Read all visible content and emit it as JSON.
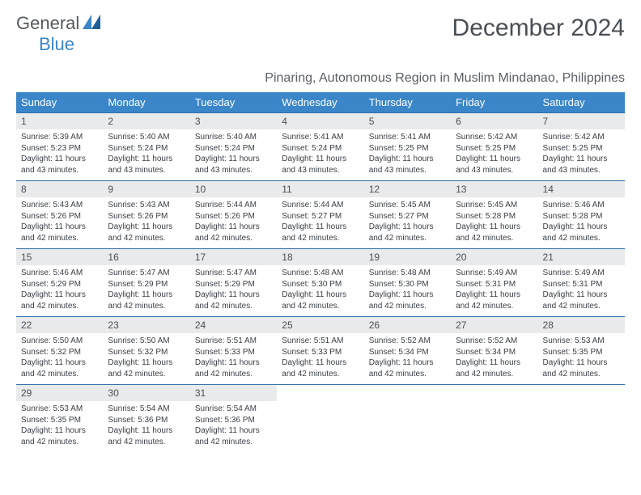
{
  "brand": {
    "part1": "General",
    "part2": "Blue"
  },
  "title": "December 2024",
  "location": "Pinaring, Autonomous Region in Muslim Mindanao, Philippines",
  "day_headers": [
    "Sunday",
    "Monday",
    "Tuesday",
    "Wednesday",
    "Thursday",
    "Friday",
    "Saturday"
  ],
  "colors": {
    "header_bg": "#3a86c8",
    "header_text": "#ffffff",
    "daynum_bg": "#e9eaeb",
    "text": "#3a3f45",
    "rule": "#2f6fa8"
  },
  "calendar_layout": {
    "type": "month-grid",
    "columns": 7,
    "rows": 5,
    "start_weekday": "Sunday",
    "first_day_column": 0
  },
  "days": [
    {
      "n": 1,
      "sunrise": "5:39 AM",
      "sunset": "5:23 PM",
      "daylight": "11 hours and 43 minutes."
    },
    {
      "n": 2,
      "sunrise": "5:40 AM",
      "sunset": "5:24 PM",
      "daylight": "11 hours and 43 minutes."
    },
    {
      "n": 3,
      "sunrise": "5:40 AM",
      "sunset": "5:24 PM",
      "daylight": "11 hours and 43 minutes."
    },
    {
      "n": 4,
      "sunrise": "5:41 AM",
      "sunset": "5:24 PM",
      "daylight": "11 hours and 43 minutes."
    },
    {
      "n": 5,
      "sunrise": "5:41 AM",
      "sunset": "5:25 PM",
      "daylight": "11 hours and 43 minutes."
    },
    {
      "n": 6,
      "sunrise": "5:42 AM",
      "sunset": "5:25 PM",
      "daylight": "11 hours and 43 minutes."
    },
    {
      "n": 7,
      "sunrise": "5:42 AM",
      "sunset": "5:25 PM",
      "daylight": "11 hours and 43 minutes."
    },
    {
      "n": 8,
      "sunrise": "5:43 AM",
      "sunset": "5:26 PM",
      "daylight": "11 hours and 42 minutes."
    },
    {
      "n": 9,
      "sunrise": "5:43 AM",
      "sunset": "5:26 PM",
      "daylight": "11 hours and 42 minutes."
    },
    {
      "n": 10,
      "sunrise": "5:44 AM",
      "sunset": "5:26 PM",
      "daylight": "11 hours and 42 minutes."
    },
    {
      "n": 11,
      "sunrise": "5:44 AM",
      "sunset": "5:27 PM",
      "daylight": "11 hours and 42 minutes."
    },
    {
      "n": 12,
      "sunrise": "5:45 AM",
      "sunset": "5:27 PM",
      "daylight": "11 hours and 42 minutes."
    },
    {
      "n": 13,
      "sunrise": "5:45 AM",
      "sunset": "5:28 PM",
      "daylight": "11 hours and 42 minutes."
    },
    {
      "n": 14,
      "sunrise": "5:46 AM",
      "sunset": "5:28 PM",
      "daylight": "11 hours and 42 minutes."
    },
    {
      "n": 15,
      "sunrise": "5:46 AM",
      "sunset": "5:29 PM",
      "daylight": "11 hours and 42 minutes."
    },
    {
      "n": 16,
      "sunrise": "5:47 AM",
      "sunset": "5:29 PM",
      "daylight": "11 hours and 42 minutes."
    },
    {
      "n": 17,
      "sunrise": "5:47 AM",
      "sunset": "5:29 PM",
      "daylight": "11 hours and 42 minutes."
    },
    {
      "n": 18,
      "sunrise": "5:48 AM",
      "sunset": "5:30 PM",
      "daylight": "11 hours and 42 minutes."
    },
    {
      "n": 19,
      "sunrise": "5:48 AM",
      "sunset": "5:30 PM",
      "daylight": "11 hours and 42 minutes."
    },
    {
      "n": 20,
      "sunrise": "5:49 AM",
      "sunset": "5:31 PM",
      "daylight": "11 hours and 42 minutes."
    },
    {
      "n": 21,
      "sunrise": "5:49 AM",
      "sunset": "5:31 PM",
      "daylight": "11 hours and 42 minutes."
    },
    {
      "n": 22,
      "sunrise": "5:50 AM",
      "sunset": "5:32 PM",
      "daylight": "11 hours and 42 minutes."
    },
    {
      "n": 23,
      "sunrise": "5:50 AM",
      "sunset": "5:32 PM",
      "daylight": "11 hours and 42 minutes."
    },
    {
      "n": 24,
      "sunrise": "5:51 AM",
      "sunset": "5:33 PM",
      "daylight": "11 hours and 42 minutes."
    },
    {
      "n": 25,
      "sunrise": "5:51 AM",
      "sunset": "5:33 PM",
      "daylight": "11 hours and 42 minutes."
    },
    {
      "n": 26,
      "sunrise": "5:52 AM",
      "sunset": "5:34 PM",
      "daylight": "11 hours and 42 minutes."
    },
    {
      "n": 27,
      "sunrise": "5:52 AM",
      "sunset": "5:34 PM",
      "daylight": "11 hours and 42 minutes."
    },
    {
      "n": 28,
      "sunrise": "5:53 AM",
      "sunset": "5:35 PM",
      "daylight": "11 hours and 42 minutes."
    },
    {
      "n": 29,
      "sunrise": "5:53 AM",
      "sunset": "5:35 PM",
      "daylight": "11 hours and 42 minutes."
    },
    {
      "n": 30,
      "sunrise": "5:54 AM",
      "sunset": "5:36 PM",
      "daylight": "11 hours and 42 minutes."
    },
    {
      "n": 31,
      "sunrise": "5:54 AM",
      "sunset": "5:36 PM",
      "daylight": "11 hours and 42 minutes."
    }
  ],
  "labels": {
    "sunrise": "Sunrise:",
    "sunset": "Sunset:",
    "daylight": "Daylight:"
  }
}
